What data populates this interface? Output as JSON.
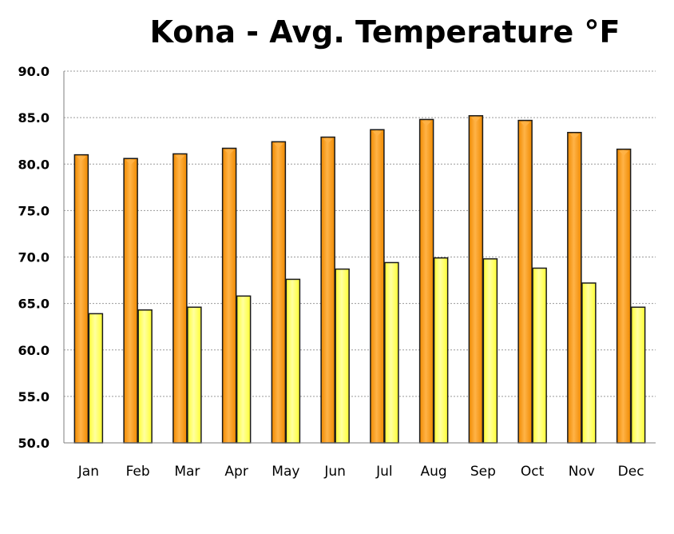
{
  "chart_data": {
    "type": "bar",
    "title": "Kona - Avg. Temperature °F",
    "xlabel": "",
    "ylabel": "",
    "categories": [
      "Jan",
      "Feb",
      "Mar",
      "Apr",
      "May",
      "Jun",
      "Jul",
      "Aug",
      "Sep",
      "Oct",
      "Nov",
      "Dec"
    ],
    "series": [
      {
        "values": [
          81.0,
          80.6,
          81.1,
          81.7,
          82.4,
          82.9,
          83.7,
          84.8,
          85.2,
          84.7,
          83.4,
          81.6
        ]
      },
      {
        "values": [
          63.9,
          64.3,
          64.6,
          65.8,
          67.6,
          68.7,
          69.4,
          69.9,
          69.8,
          68.8,
          67.2,
          64.6
        ]
      }
    ],
    "ylim": [
      50,
      90
    ],
    "yticks": [
      "50.0",
      "55.0",
      "60.0",
      "65.0",
      "70.0",
      "75.0",
      "80.0",
      "85.0",
      "90.0"
    ],
    "grid": true,
    "legend": "none",
    "colors": {
      "high_fill": "#F08A00",
      "high_highlight": "#FFB347",
      "low_fill": "#FFFF33",
      "low_highlight": "#FFFFA0",
      "bar_outline": "#1a1a1a",
      "grid": "#9a9a9a",
      "axis": "#7f7f7f"
    }
  }
}
